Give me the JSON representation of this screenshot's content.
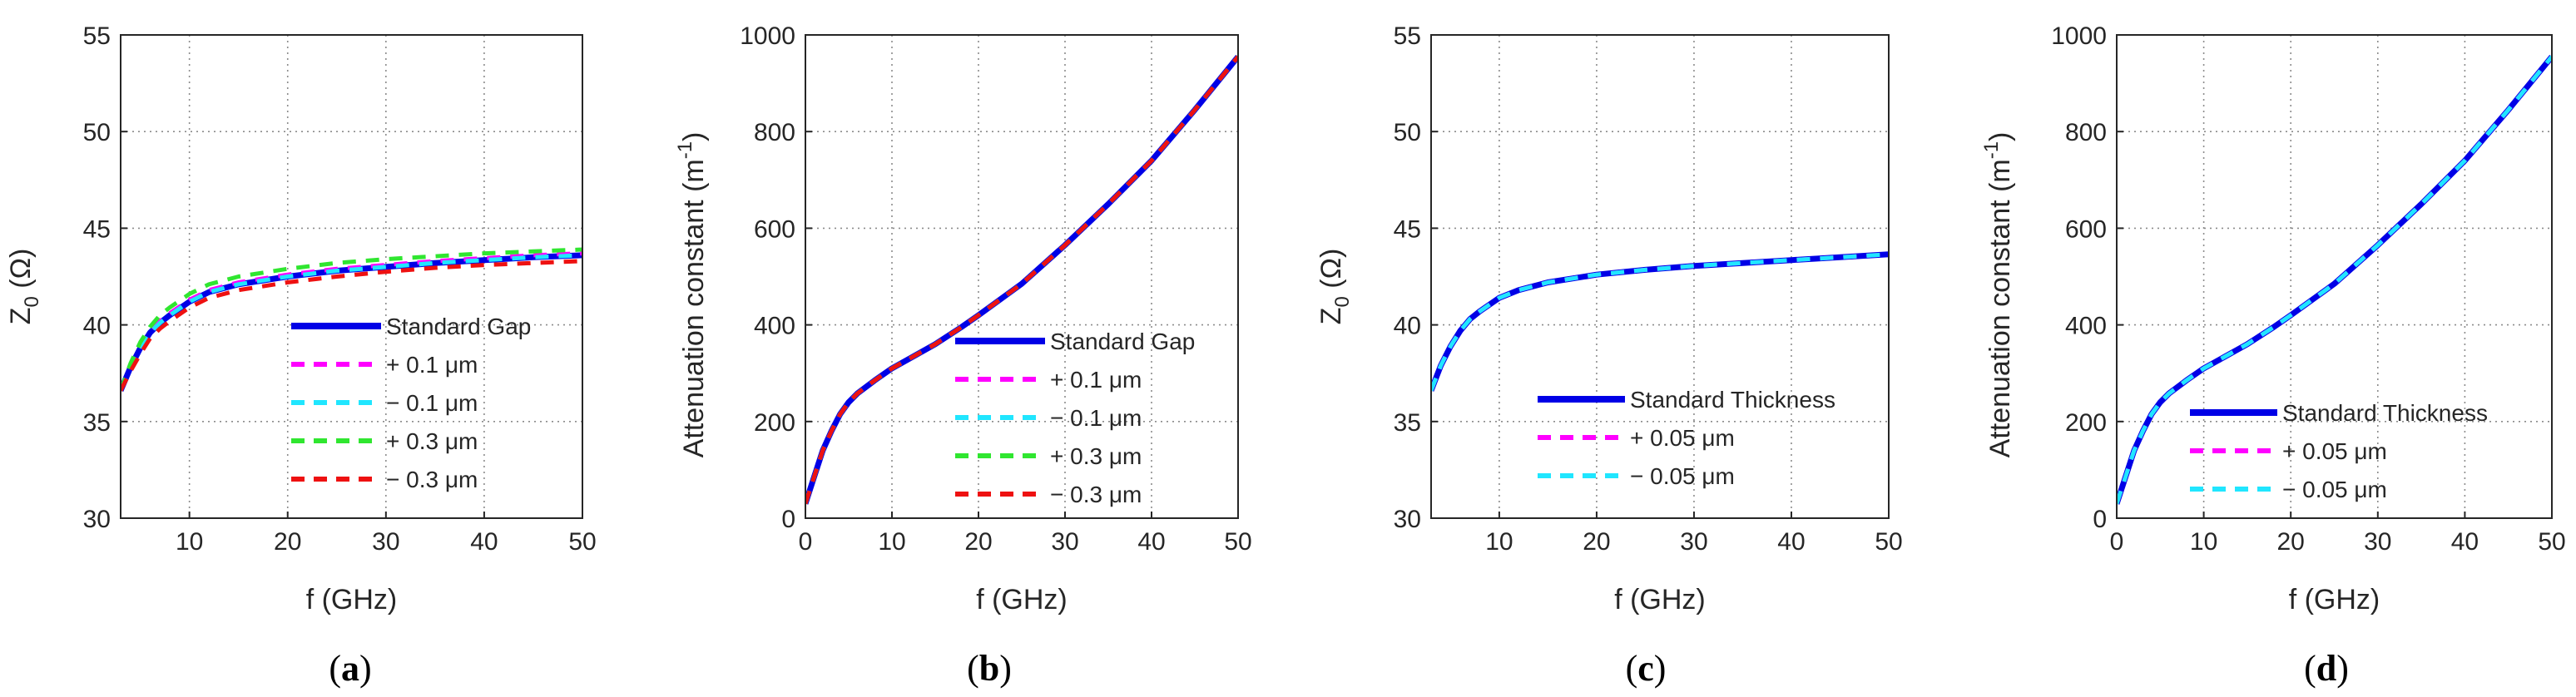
{
  "figure_title": "",
  "panel_labels": [
    "a",
    "b",
    "c",
    "d"
  ],
  "colors": {
    "standard": "#0000e6",
    "magenta": "#ff00ff",
    "cyan": "#20e6ff",
    "green": "#30e630",
    "red": "#ee1111",
    "axis": "#262626",
    "grid": "#8c8c8c"
  },
  "chart_data": [
    {
      "id": "a",
      "type": "line",
      "xlabel": "f (GHz)",
      "ylabel_main": "Z",
      "ylabel_sub": "0",
      "ylabel_rest": " (Ω)",
      "xlim": [
        3,
        50
      ],
      "ylim": [
        30,
        55
      ],
      "xticks": [
        10,
        20,
        30,
        40,
        50
      ],
      "yticks": [
        30,
        35,
        40,
        45,
        50,
        55
      ],
      "x": [
        3,
        4,
        5,
        6,
        7,
        8,
        10,
        12,
        15,
        20,
        25,
        30,
        35,
        40,
        45,
        50
      ],
      "series": [
        {
          "name": "Standard Gap",
          "color": "standard",
          "dash": false,
          "values": [
            36.6,
            37.8,
            38.8,
            39.6,
            40.1,
            40.5,
            41.2,
            41.7,
            42.1,
            42.5,
            42.8,
            43.0,
            43.2,
            43.35,
            43.5,
            43.6
          ]
        },
        {
          "name": "+ 0.1 μm",
          "color": "magenta",
          "dash": true,
          "values": [
            36.6,
            37.9,
            38.9,
            39.7,
            40.2,
            40.6,
            41.3,
            41.8,
            42.2,
            42.6,
            42.9,
            43.1,
            43.3,
            43.45,
            43.6,
            43.7
          ]
        },
        {
          "name": "−  0.1 μm",
          "color": "cyan",
          "dash": true,
          "values": [
            36.6,
            37.8,
            38.8,
            39.6,
            40.1,
            40.5,
            41.2,
            41.7,
            42.1,
            42.5,
            42.8,
            43.0,
            43.2,
            43.35,
            43.5,
            43.6
          ]
        },
        {
          "name": "+ 0.3 μm",
          "color": "green",
          "dash": true,
          "values": [
            36.6,
            38.0,
            39.1,
            39.9,
            40.5,
            40.9,
            41.6,
            42.1,
            42.5,
            42.9,
            43.2,
            43.4,
            43.55,
            43.7,
            43.8,
            43.9
          ]
        },
        {
          "name": "−  0.3 μm",
          "color": "red",
          "dash": true,
          "values": [
            36.6,
            37.6,
            38.5,
            39.3,
            39.8,
            40.2,
            40.9,
            41.4,
            41.8,
            42.2,
            42.5,
            42.75,
            42.95,
            43.1,
            43.2,
            43.3
          ]
        }
      ]
    },
    {
      "id": "b",
      "type": "line",
      "xlabel": "f  (GHz)",
      "ylabel_main": "Attenuation  constant (m",
      "ylabel_sup": "-1",
      "ylabel_rest": ")",
      "xlim": [
        0,
        50
      ],
      "ylim": [
        0,
        1000
      ],
      "xticks": [
        0,
        10,
        20,
        30,
        40,
        50
      ],
      "yticks": [
        0,
        200,
        400,
        600,
        800,
        1000
      ],
      "x": [
        0,
        1,
        2,
        3,
        4,
        5,
        6,
        8,
        10,
        12,
        15,
        18,
        20,
        25,
        30,
        35,
        40,
        45,
        50
      ],
      "series": [
        {
          "name": "Standard Gap",
          "color": "standard",
          "dash": false,
          "values": [
            30,
            85,
            140,
            180,
            215,
            240,
            258,
            285,
            310,
            330,
            360,
            395,
            420,
            485,
            565,
            650,
            740,
            845,
            955
          ]
        },
        {
          "name": "+ 0.1 μm",
          "color": "magenta",
          "dash": true,
          "values": [
            30,
            85,
            140,
            180,
            215,
            240,
            258,
            285,
            310,
            330,
            360,
            395,
            420,
            485,
            565,
            650,
            740,
            845,
            955
          ]
        },
        {
          "name": "−  0.1 μm",
          "color": "cyan",
          "dash": true,
          "values": [
            30,
            85,
            140,
            180,
            215,
            240,
            258,
            285,
            310,
            330,
            360,
            395,
            420,
            485,
            565,
            650,
            740,
            845,
            955
          ]
        },
        {
          "name": "+ 0.3 μm",
          "color": "green",
          "dash": true,
          "values": [
            30,
            85,
            140,
            180,
            215,
            240,
            258,
            285,
            310,
            330,
            360,
            395,
            420,
            485,
            565,
            650,
            740,
            845,
            955
          ]
        },
        {
          "name": "−  0.3 μm",
          "color": "red",
          "dash": true,
          "values": [
            30,
            85,
            140,
            180,
            215,
            240,
            258,
            285,
            310,
            330,
            360,
            395,
            420,
            485,
            565,
            650,
            740,
            845,
            955
          ]
        }
      ]
    },
    {
      "id": "c",
      "type": "line",
      "xlabel": "f (GHz)",
      "ylabel_main": "Z",
      "ylabel_sub": "0",
      "ylabel_rest": " (Ω)",
      "xlim": [
        3,
        50
      ],
      "ylim": [
        30,
        55
      ],
      "xticks": [
        10,
        20,
        30,
        40,
        50
      ],
      "yticks": [
        30,
        35,
        40,
        45,
        50,
        55
      ],
      "x": [
        3,
        4,
        5,
        6,
        7,
        8,
        10,
        12,
        15,
        20,
        25,
        30,
        35,
        40,
        45,
        50
      ],
      "series": [
        {
          "name": "Standard Thickness",
          "color": "standard",
          "dash": false,
          "values": [
            36.6,
            37.9,
            38.9,
            39.7,
            40.3,
            40.7,
            41.4,
            41.8,
            42.2,
            42.6,
            42.85,
            43.05,
            43.2,
            43.35,
            43.5,
            43.65
          ]
        },
        {
          "name": "+ 0.05 μm",
          "color": "magenta",
          "dash": true,
          "values": [
            36.6,
            37.9,
            38.9,
            39.7,
            40.3,
            40.7,
            41.4,
            41.8,
            42.2,
            42.6,
            42.85,
            43.05,
            43.2,
            43.35,
            43.5,
            43.65
          ]
        },
        {
          "name": "−  0.05 μm",
          "color": "cyan",
          "dash": true,
          "values": [
            36.6,
            37.9,
            38.9,
            39.7,
            40.3,
            40.7,
            41.4,
            41.8,
            42.2,
            42.6,
            42.85,
            43.05,
            43.2,
            43.35,
            43.5,
            43.65
          ]
        }
      ]
    },
    {
      "id": "d",
      "type": "line",
      "xlabel": "f  (GHz)",
      "ylabel_main": "Attenuation  constant (m",
      "ylabel_sup": "-1",
      "ylabel_rest": ")",
      "xlim": [
        0,
        50
      ],
      "ylim": [
        0,
        1000
      ],
      "xticks": [
        0,
        10,
        20,
        30,
        40,
        50
      ],
      "yticks": [
        0,
        200,
        400,
        600,
        800,
        1000
      ],
      "x": [
        0,
        1,
        2,
        3,
        4,
        5,
        6,
        8,
        10,
        12,
        15,
        18,
        20,
        25,
        30,
        35,
        40,
        45,
        50
      ],
      "series": [
        {
          "name": "Standard Thickness",
          "color": "standard",
          "dash": false,
          "values": [
            30,
            85,
            140,
            180,
            215,
            240,
            258,
            285,
            310,
            330,
            360,
            395,
            420,
            485,
            565,
            650,
            740,
            845,
            955
          ]
        },
        {
          "name": "+ 0.05 μm",
          "color": "magenta",
          "dash": true,
          "values": [
            30,
            85,
            140,
            180,
            215,
            240,
            258,
            285,
            310,
            330,
            360,
            395,
            420,
            485,
            565,
            650,
            740,
            845,
            955
          ]
        },
        {
          "name": "−  0.05 μm",
          "color": "cyan",
          "dash": true,
          "values": [
            30,
            85,
            140,
            180,
            215,
            240,
            258,
            285,
            310,
            330,
            360,
            395,
            420,
            485,
            565,
            650,
            740,
            845,
            955
          ]
        }
      ]
    }
  ]
}
